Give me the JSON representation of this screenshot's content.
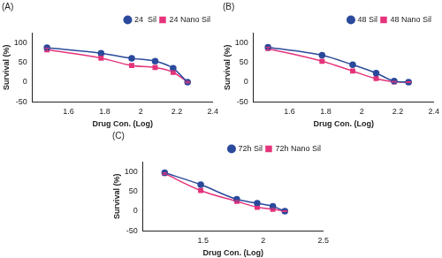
{
  "chart_data": [
    {
      "type": "line",
      "title": "(A)",
      "x_label": "Drug Con. (Log)",
      "y_label": "Survival (%)",
      "x": [
        1.48,
        1.78,
        1.95,
        2.08,
        2.18,
        2.26
      ],
      "series": [
        {
          "name": "24  Sil",
          "color": "#2b4a9c",
          "marker": "circle",
          "values": [
            87,
            73,
            60,
            53,
            35,
            0
          ],
          "errors": [
            4,
            4,
            4,
            4,
            4,
            2
          ]
        },
        {
          "name": "24 Nano Sil",
          "color": "#e5337b",
          "marker": "square",
          "values": [
            82,
            61,
            42,
            37,
            25,
            0
          ],
          "errors": [
            4,
            5,
            4,
            4,
            4,
            2
          ]
        }
      ],
      "xlim": [
        1.4,
        2.4
      ],
      "xticks": [
        1.6,
        1.8,
        2.0,
        2.2,
        2.4
      ],
      "ylim": [
        -50,
        125
      ],
      "yticks": [
        -50,
        0,
        50,
        100
      ],
      "grid": false,
      "legend": "top-right"
    },
    {
      "type": "line",
      "title": "(B)",
      "x_label": "Drug Con. (Log)",
      "y_label": "Survival (%)",
      "x": [
        1.48,
        1.78,
        1.95,
        2.08,
        2.18,
        2.26
      ],
      "series": [
        {
          "name": "48 Sil",
          "color": "#2b4a9c",
          "marker": "circle",
          "values": [
            88,
            68,
            44,
            23,
            3,
            0
          ],
          "errors": [
            3,
            2,
            2,
            2,
            2,
            1
          ]
        },
        {
          "name": "48 Nano Sil",
          "color": "#e5337b",
          "marker": "square",
          "values": [
            85,
            53,
            28,
            9,
            1,
            0
          ],
          "errors": [
            3,
            2,
            2,
            2,
            1,
            1
          ]
        }
      ],
      "xlim": [
        1.4,
        2.4
      ],
      "xticks": [
        1.6,
        1.8,
        2.0,
        2.2,
        2.4
      ],
      "ylim": [
        -50,
        125
      ],
      "yticks": [
        -50,
        0,
        50,
        100
      ],
      "grid": false,
      "legend": "top-right"
    },
    {
      "type": "line",
      "title": "(C)",
      "x_label": "Drug Con. (Log)",
      "y_label": "Survival (%)",
      "x": [
        1.18,
        1.48,
        1.78,
        1.95,
        2.08,
        2.18
      ],
      "series": [
        {
          "name": "72h Sil",
          "color": "#2b4a9c",
          "marker": "circle",
          "values": [
            97,
            67,
            30,
            20,
            12,
            0
          ],
          "errors": [
            2,
            2,
            2,
            2,
            2,
            1
          ]
        },
        {
          "name": "72h Nano Sil",
          "color": "#e5337b",
          "marker": "square",
          "values": [
            95,
            52,
            25,
            10,
            5,
            0
          ],
          "errors": [
            2,
            2,
            2,
            2,
            2,
            1
          ]
        }
      ],
      "xlim": [
        1.0,
        2.5
      ],
      "xticks": [
        1.5,
        2.0,
        2.5
      ],
      "ylim": [
        -50,
        125
      ],
      "yticks": [
        -50,
        0,
        50,
        100
      ],
      "grid": false,
      "legend": "top-right"
    }
  ]
}
